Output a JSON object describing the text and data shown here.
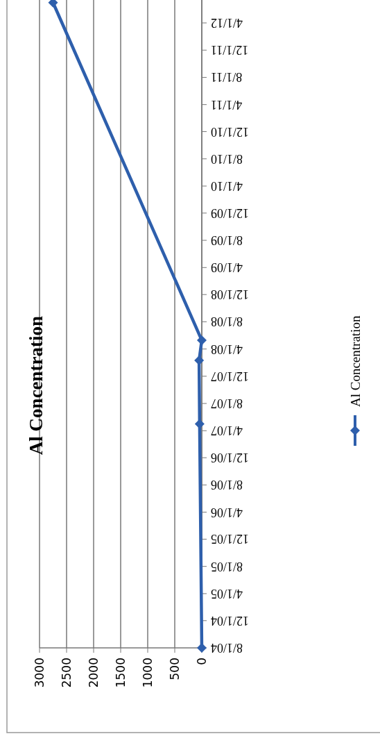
{
  "chart_data": {
    "type": "line",
    "title": "Al Concentration",
    "orientation": "horizontal",
    "x": [
      "2004-08-01",
      "2007-05-01",
      "2008-02-10",
      "2008-05-10",
      "2012-07-01"
    ],
    "series": [
      {
        "name": "Al Concentration",
        "color": "#2e5fac",
        "values": [
          0,
          40,
          50,
          0,
          2750
        ]
      }
    ],
    "xlim": [
      3000,
      0
    ],
    "xticks": [
      3000,
      2500,
      2000,
      1500,
      1000,
      500,
      0
    ],
    "ylim": [
      "2004-08-01",
      "2012-08-01"
    ],
    "yticks": [
      {
        "value": "2004-08-01",
        "label": "8/1/04"
      },
      {
        "value": "2004-12-01",
        "label": "12/1/04"
      },
      {
        "value": "2005-04-01",
        "label": "4/1/05"
      },
      {
        "value": "2005-08-01",
        "label": "8/1/05"
      },
      {
        "value": "2005-12-01",
        "label": "12/1/05"
      },
      {
        "value": "2006-04-01",
        "label": "4/1/06"
      },
      {
        "value": "2006-08-01",
        "label": "8/1/06"
      },
      {
        "value": "2006-12-01",
        "label": "12/1/06"
      },
      {
        "value": "2007-04-01",
        "label": "4/1/07"
      },
      {
        "value": "2007-08-01",
        "label": "8/1/07"
      },
      {
        "value": "2007-12-01",
        "label": "12/1/07"
      },
      {
        "value": "2008-04-01",
        "label": "4/1/08"
      },
      {
        "value": "2008-08-01",
        "label": "8/1/08"
      },
      {
        "value": "2008-12-01",
        "label": "12/1/08"
      },
      {
        "value": "2009-04-01",
        "label": "4/1/09"
      },
      {
        "value": "2009-08-01",
        "label": "8/1/09"
      },
      {
        "value": "2009-12-01",
        "label": "12/1/09"
      },
      {
        "value": "2010-04-01",
        "label": "4/1/10"
      },
      {
        "value": "2010-08-01",
        "label": "8/1/10"
      },
      {
        "value": "2010-12-01",
        "label": "12/1/10"
      },
      {
        "value": "2011-04-01",
        "label": "4/1/11"
      },
      {
        "value": "2011-08-01",
        "label": "8/1/11"
      },
      {
        "value": "2011-12-01",
        "label": "12/1/11"
      },
      {
        "value": "2012-04-01",
        "label": "4/1/12"
      }
    ],
    "grid": "x",
    "legend": "right",
    "marker": "diamond",
    "line_style": "solid"
  }
}
